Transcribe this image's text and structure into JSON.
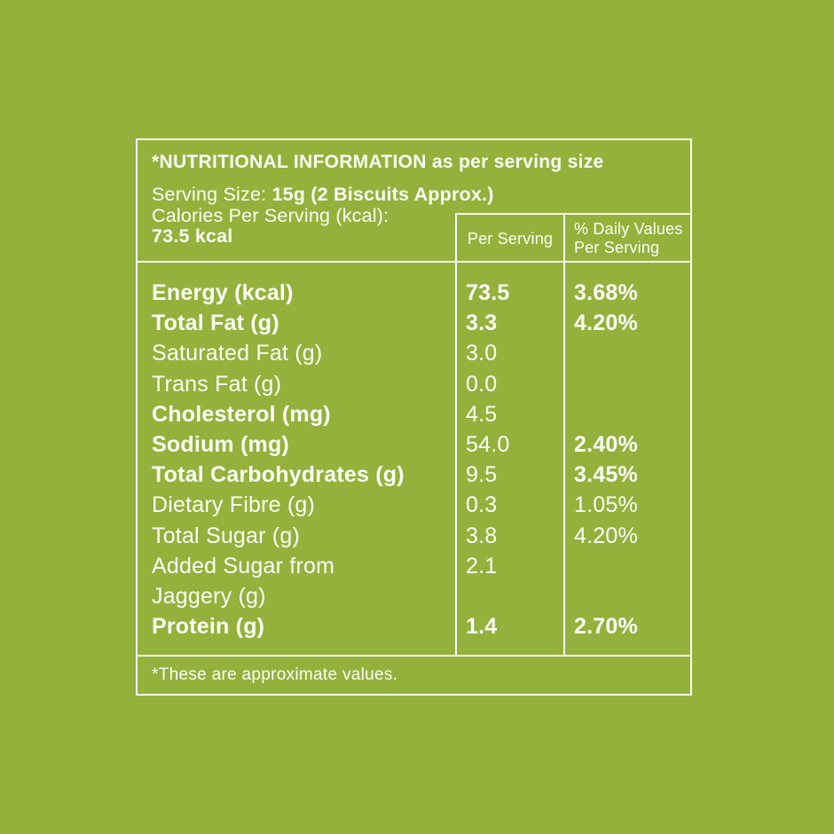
{
  "page": {
    "background_color": "#94B13C",
    "text_color": "#FCFEF6",
    "border_color": "#FAFCF1"
  },
  "table": {
    "title": "*NUTRITIONAL INFORMATION as per serving size",
    "serving_size_label": "Serving Size: ",
    "serving_size_value": "15g (2 Biscuits Approx.)",
    "calories_label": "Calories Per Serving (kcal):",
    "calories_value": "73.5 kcal",
    "columns": {
      "per_serving": "Per Serving",
      "daily_values_line1": "% Daily Values",
      "daily_values_line2": "Per Serving"
    },
    "rows": [
      {
        "label": "Energy (kcal)",
        "value": "73.5",
        "dv": "3.68%",
        "label_bold": true,
        "value_bold": true,
        "dv_bold": true
      },
      {
        "label": "Total Fat (g)",
        "value": "3.3",
        "dv": "4.20%",
        "label_bold": true,
        "value_bold": true,
        "dv_bold": true
      },
      {
        "label": "Saturated Fat (g)",
        "value": "3.0",
        "dv": "",
        "label_bold": false,
        "value_bold": false,
        "dv_bold": false
      },
      {
        "label": "Trans Fat (g)",
        "value": "0.0",
        "dv": "",
        "label_bold": false,
        "value_bold": false,
        "dv_bold": false
      },
      {
        "label": "Cholesterol (mg)",
        "value": "4.5",
        "dv": "",
        "label_bold": true,
        "value_bold": false,
        "dv_bold": false
      },
      {
        "label": "Sodium (mg)",
        "value": "54.0",
        "dv": "2.40%",
        "label_bold": true,
        "value_bold": false,
        "dv_bold": true
      },
      {
        "label": "Total Carbohydrates (g)",
        "value": "9.5",
        "dv": "3.45%",
        "label_bold": true,
        "value_bold": false,
        "dv_bold": true
      },
      {
        "label": "Dietary Fibre (g)",
        "value": "0.3",
        "dv": "1.05%",
        "label_bold": false,
        "value_bold": false,
        "dv_bold": false
      },
      {
        "label": "Total Sugar (g)",
        "value": "3.8",
        "dv": "4.20%",
        "label_bold": false,
        "value_bold": false,
        "dv_bold": false
      },
      {
        "label": "Added Sugar from\nJaggery (g)",
        "value": "2.1",
        "dv": "",
        "label_bold": false,
        "value_bold": false,
        "dv_bold": false
      },
      {
        "label": "Protein (g)",
        "value": "1.4",
        "dv": "2.70%",
        "label_bold": true,
        "value_bold": true,
        "dv_bold": true
      }
    ],
    "footnote": "*These are approximate values."
  }
}
